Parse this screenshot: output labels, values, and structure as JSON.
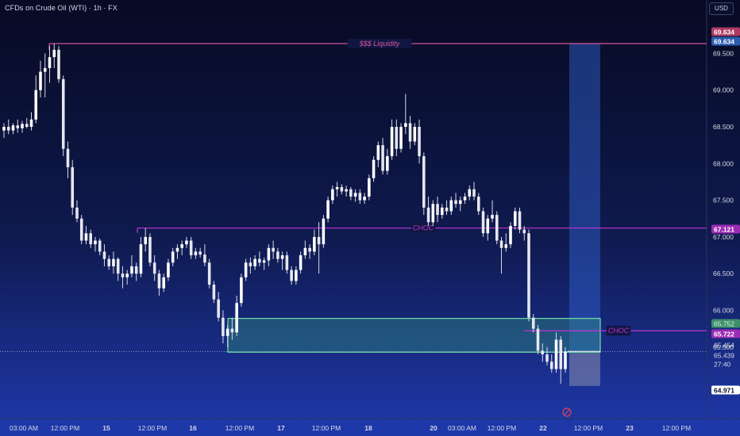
{
  "header": {
    "title": "CFDs on Crude Oil (WTI) · 1h · FX",
    "currency": "USD"
  },
  "chart_data": {
    "type": "candlestick",
    "price_range": [
      64.72,
      70.12
    ],
    "price_ticks": [
      "69.500",
      "69.000",
      "68.500",
      "68.000",
      "67.500",
      "67.000",
      "66.500",
      "66.000",
      "65.500"
    ],
    "time_labels": [
      "03:00 AM",
      "12:00 PM",
      "15",
      "12:00 PM",
      "16",
      "12:00 PM",
      "17",
      "12:00 PM",
      "18",
      "20",
      "03:00 AM",
      "12:00 PM",
      "22",
      "12:00 PM",
      "23",
      "12:00 PM"
    ],
    "levels": [
      {
        "label": "$$$ Liquidity",
        "value": 69.634,
        "color": "#d8539a"
      },
      {
        "label": "CHOC",
        "value": 67.121,
        "color": "#c233d6"
      },
      {
        "label": "CHOC",
        "value": 65.722,
        "color": "#c233d6"
      }
    ],
    "price_badges": [
      {
        "text": "69.634",
        "value": 69.634,
        "bg": "#b03a63",
        "fg": "#ffffff"
      },
      {
        "text": "69.634",
        "value": 69.634,
        "bg": "#2a5db0",
        "fg": "#ffffff"
      },
      {
        "text": "67.121",
        "value": 67.121,
        "bg": "#9c2bb5",
        "fg": "#ffffff"
      },
      {
        "text": "65.752",
        "value": 65.752,
        "bg": "#3f8f6a",
        "fg": "#d9f2e4"
      },
      {
        "text": "65.722",
        "value": 65.722,
        "bg": "#9c2bb5",
        "fg": "#ffffff"
      },
      {
        "text": "65.454",
        "value": 65.454,
        "bg": "none",
        "fg": "#d6d9e6"
      },
      {
        "text": "65.439",
        "value": 65.439,
        "bg": "none",
        "fg": "#d6d9e6"
      },
      {
        "text": "27:40",
        "value": 65.35,
        "bg": "none",
        "fg": "#d6d9e6"
      },
      {
        "text": "64.971",
        "value": 64.971,
        "bg": "#ffffff",
        "fg": "#0b0f2e"
      }
    ],
    "demand_zone": {
      "top": 65.89,
      "bottom": 65.43
    },
    "position": {
      "entry": 65.44,
      "target": 69.634,
      "stop": 64.97
    },
    "close": 65.439,
    "candles": [
      [
        68.45,
        68.55,
        68.35,
        68.5
      ],
      [
        68.5,
        68.6,
        68.4,
        68.45
      ],
      [
        68.45,
        68.55,
        68.4,
        68.52
      ],
      [
        68.52,
        68.6,
        68.42,
        68.48
      ],
      [
        68.48,
        68.58,
        68.42,
        68.54
      ],
      [
        68.54,
        68.62,
        68.48,
        68.5
      ],
      [
        68.5,
        68.7,
        68.45,
        68.6
      ],
      [
        68.6,
        69.2,
        68.55,
        69.0
      ],
      [
        69.0,
        69.4,
        68.9,
        69.25
      ],
      [
        69.25,
        69.5,
        68.9,
        69.3
      ],
      [
        69.3,
        69.6,
        69.1,
        69.45
      ],
      [
        69.45,
        69.63,
        69.3,
        69.55
      ],
      [
        69.55,
        69.6,
        69.1,
        69.15
      ],
      [
        69.15,
        69.2,
        68.1,
        68.2
      ],
      [
        68.2,
        68.3,
        67.8,
        67.95
      ],
      [
        67.95,
        68.05,
        67.3,
        67.4
      ],
      [
        67.4,
        67.5,
        67.2,
        67.25
      ],
      [
        67.25,
        67.3,
        66.9,
        66.95
      ],
      [
        66.95,
        67.15,
        66.9,
        67.05
      ],
      [
        67.05,
        67.1,
        66.85,
        66.9
      ],
      [
        66.9,
        67.0,
        66.8,
        66.95
      ],
      [
        66.95,
        66.98,
        66.75,
        66.8
      ],
      [
        66.8,
        66.9,
        66.6,
        66.7
      ],
      [
        66.7,
        66.75,
        66.55,
        66.6
      ],
      [
        66.6,
        66.8,
        66.5,
        66.7
      ],
      [
        66.7,
        66.72,
        66.4,
        66.5
      ],
      [
        66.5,
        66.6,
        66.3,
        66.45
      ],
      [
        66.45,
        66.55,
        66.35,
        66.5
      ],
      [
        66.5,
        66.75,
        66.45,
        66.6
      ],
      [
        66.6,
        66.65,
        66.4,
        66.5
      ],
      [
        66.5,
        67.0,
        66.45,
        66.9
      ],
      [
        66.9,
        67.12,
        66.8,
        67.0
      ],
      [
        67.0,
        67.05,
        66.6,
        66.65
      ],
      [
        66.65,
        66.75,
        66.4,
        66.5
      ],
      [
        66.5,
        66.55,
        66.2,
        66.3
      ],
      [
        66.3,
        66.5,
        66.25,
        66.45
      ],
      [
        66.45,
        66.7,
        66.4,
        66.65
      ],
      [
        66.65,
        66.85,
        66.6,
        66.8
      ],
      [
        66.8,
        66.9,
        66.7,
        66.85
      ],
      [
        66.85,
        66.95,
        66.75,
        66.9
      ],
      [
        66.9,
        67.0,
        66.85,
        66.95
      ],
      [
        66.95,
        67.0,
        66.7,
        66.75
      ],
      [
        66.75,
        66.85,
        66.7,
        66.8
      ],
      [
        66.8,
        66.85,
        66.72,
        66.76
      ],
      [
        66.76,
        66.9,
        66.6,
        66.65
      ],
      [
        66.65,
        66.7,
        66.3,
        66.35
      ],
      [
        66.35,
        66.4,
        66.1,
        66.15
      ],
      [
        66.15,
        66.25,
        65.85,
        65.9
      ],
      [
        65.9,
        66.0,
        65.55,
        65.65
      ],
      [
        65.65,
        65.8,
        65.5,
        65.75
      ],
      [
        65.75,
        65.9,
        65.6,
        65.7
      ],
      [
        65.7,
        66.2,
        65.65,
        66.1
      ],
      [
        66.1,
        66.5,
        66.05,
        66.45
      ],
      [
        66.45,
        66.7,
        66.4,
        66.65
      ],
      [
        66.65,
        66.72,
        66.5,
        66.6
      ],
      [
        66.6,
        66.75,
        66.55,
        66.7
      ],
      [
        66.7,
        66.8,
        66.6,
        66.65
      ],
      [
        66.65,
        66.72,
        66.55,
        66.68
      ],
      [
        66.68,
        66.9,
        66.6,
        66.85
      ],
      [
        66.85,
        66.95,
        66.7,
        66.8
      ],
      [
        66.8,
        66.85,
        66.65,
        66.7
      ],
      [
        66.7,
        66.8,
        66.55,
        66.75
      ],
      [
        66.75,
        66.8,
        66.5,
        66.55
      ],
      [
        66.55,
        66.6,
        66.35,
        66.4
      ],
      [
        66.4,
        66.6,
        66.35,
        66.55
      ],
      [
        66.55,
        66.8,
        66.5,
        66.75
      ],
      [
        66.75,
        66.95,
        66.7,
        66.85
      ],
      [
        66.85,
        66.9,
        66.7,
        66.8
      ],
      [
        66.8,
        67.1,
        66.75,
        67.0
      ],
      [
        67.0,
        67.2,
        66.5,
        66.9
      ],
      [
        66.9,
        67.3,
        66.85,
        67.25
      ],
      [
        67.25,
        67.55,
        67.2,
        67.5
      ],
      [
        67.5,
        67.7,
        67.45,
        67.65
      ],
      [
        67.65,
        67.75,
        67.55,
        67.68
      ],
      [
        67.68,
        67.72,
        67.58,
        67.62
      ],
      [
        67.62,
        67.7,
        67.55,
        67.65
      ],
      [
        67.65,
        67.68,
        67.5,
        67.55
      ],
      [
        67.55,
        67.65,
        67.48,
        67.6
      ],
      [
        67.6,
        67.65,
        67.45,
        67.5
      ],
      [
        67.5,
        67.6,
        67.45,
        67.55
      ],
      [
        67.55,
        67.85,
        67.5,
        67.8
      ],
      [
        67.8,
        68.1,
        67.75,
        68.05
      ],
      [
        68.05,
        68.3,
        67.95,
        68.25
      ],
      [
        68.25,
        68.35,
        67.85,
        67.9
      ],
      [
        67.9,
        68.2,
        67.85,
        68.1
      ],
      [
        68.1,
        68.6,
        68.05,
        68.5
      ],
      [
        68.5,
        68.6,
        68.1,
        68.2
      ],
      [
        68.2,
        68.55,
        68.15,
        68.5
      ],
      [
        68.5,
        68.95,
        68.4,
        68.55
      ],
      [
        68.55,
        68.65,
        68.2,
        68.3
      ],
      [
        68.3,
        68.55,
        68.25,
        68.5
      ],
      [
        68.5,
        68.6,
        68.0,
        68.1
      ],
      [
        68.1,
        68.15,
        67.3,
        67.4
      ],
      [
        67.4,
        67.55,
        67.15,
        67.2
      ],
      [
        67.2,
        67.5,
        67.15,
        67.45
      ],
      [
        67.45,
        67.55,
        67.2,
        67.3
      ],
      [
        67.3,
        67.45,
        67.25,
        67.4
      ],
      [
        67.4,
        67.5,
        67.3,
        67.35
      ],
      [
        67.35,
        67.55,
        67.3,
        67.5
      ],
      [
        67.5,
        67.6,
        67.4,
        67.45
      ],
      [
        67.45,
        67.55,
        67.35,
        67.5
      ],
      [
        67.5,
        67.6,
        67.45,
        67.55
      ],
      [
        67.55,
        67.7,
        67.5,
        67.65
      ],
      [
        67.65,
        67.75,
        67.5,
        67.55
      ],
      [
        67.55,
        67.6,
        67.3,
        67.35
      ],
      [
        67.35,
        67.4,
        67.0,
        67.05
      ],
      [
        67.05,
        67.3,
        66.95,
        67.25
      ],
      [
        67.25,
        67.5,
        67.2,
        67.3
      ],
      [
        67.3,
        67.35,
        66.9,
        66.95
      ],
      [
        66.95,
        67.0,
        66.5,
        66.85
      ],
      [
        66.85,
        67.05,
        66.8,
        66.9
      ],
      [
        66.9,
        67.2,
        66.85,
        67.15
      ],
      [
        67.15,
        67.4,
        67.1,
        67.35
      ],
      [
        67.35,
        67.4,
        67.05,
        67.1
      ],
      [
        67.1,
        67.15,
        66.95,
        67.05
      ],
      [
        67.05,
        67.1,
        65.85,
        65.9
      ],
      [
        65.9,
        65.95,
        65.7,
        65.75
      ],
      [
        65.75,
        65.8,
        65.4,
        65.45
      ],
      [
        65.45,
        65.55,
        65.3,
        65.4
      ],
      [
        65.4,
        65.5,
        65.25,
        65.3
      ],
      [
        65.3,
        65.4,
        65.15,
        65.2
      ],
      [
        65.2,
        65.7,
        65.15,
        65.6
      ],
      [
        65.6,
        65.65,
        65.0,
        65.2
      ],
      [
        65.2,
        65.5,
        65.15,
        65.44
      ]
    ]
  }
}
